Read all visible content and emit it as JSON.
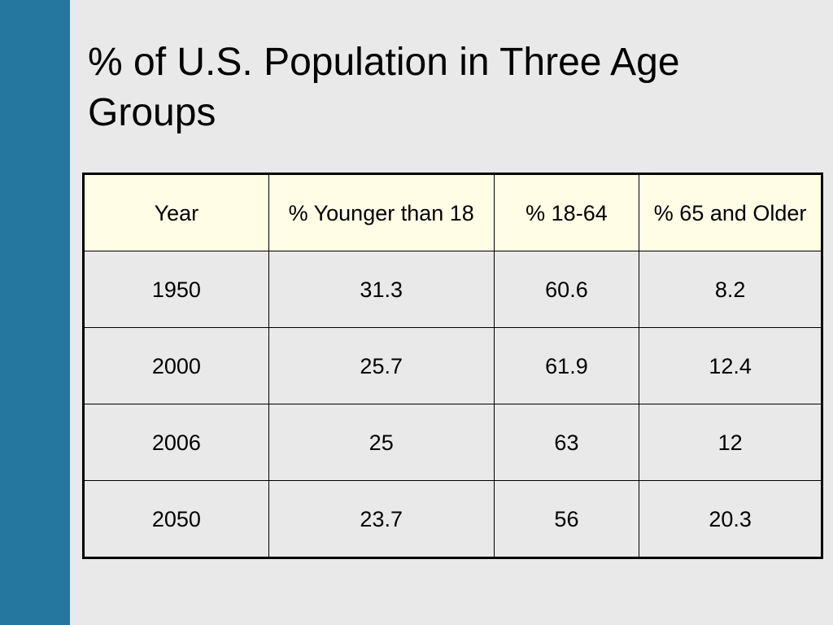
{
  "slide": {
    "title": "% of U.S. Population in Three Age Groups",
    "colors": {
      "sidebar": "#2677a0",
      "background": "#e9e9e9",
      "header_fill": "#fffde6",
      "text": "#000000"
    }
  },
  "table": {
    "headers": [
      "Year",
      "% Younger than 18",
      "% 18-64",
      "% 65 and Older"
    ],
    "rows": [
      [
        "1950",
        "31.3",
        "60.6",
        "8.2"
      ],
      [
        "2000",
        "25.7",
        "61.9",
        "12.4"
      ],
      [
        "2006",
        "25",
        "63",
        "12"
      ],
      [
        "2050",
        "23.7",
        "56",
        "20.3"
      ]
    ]
  }
}
